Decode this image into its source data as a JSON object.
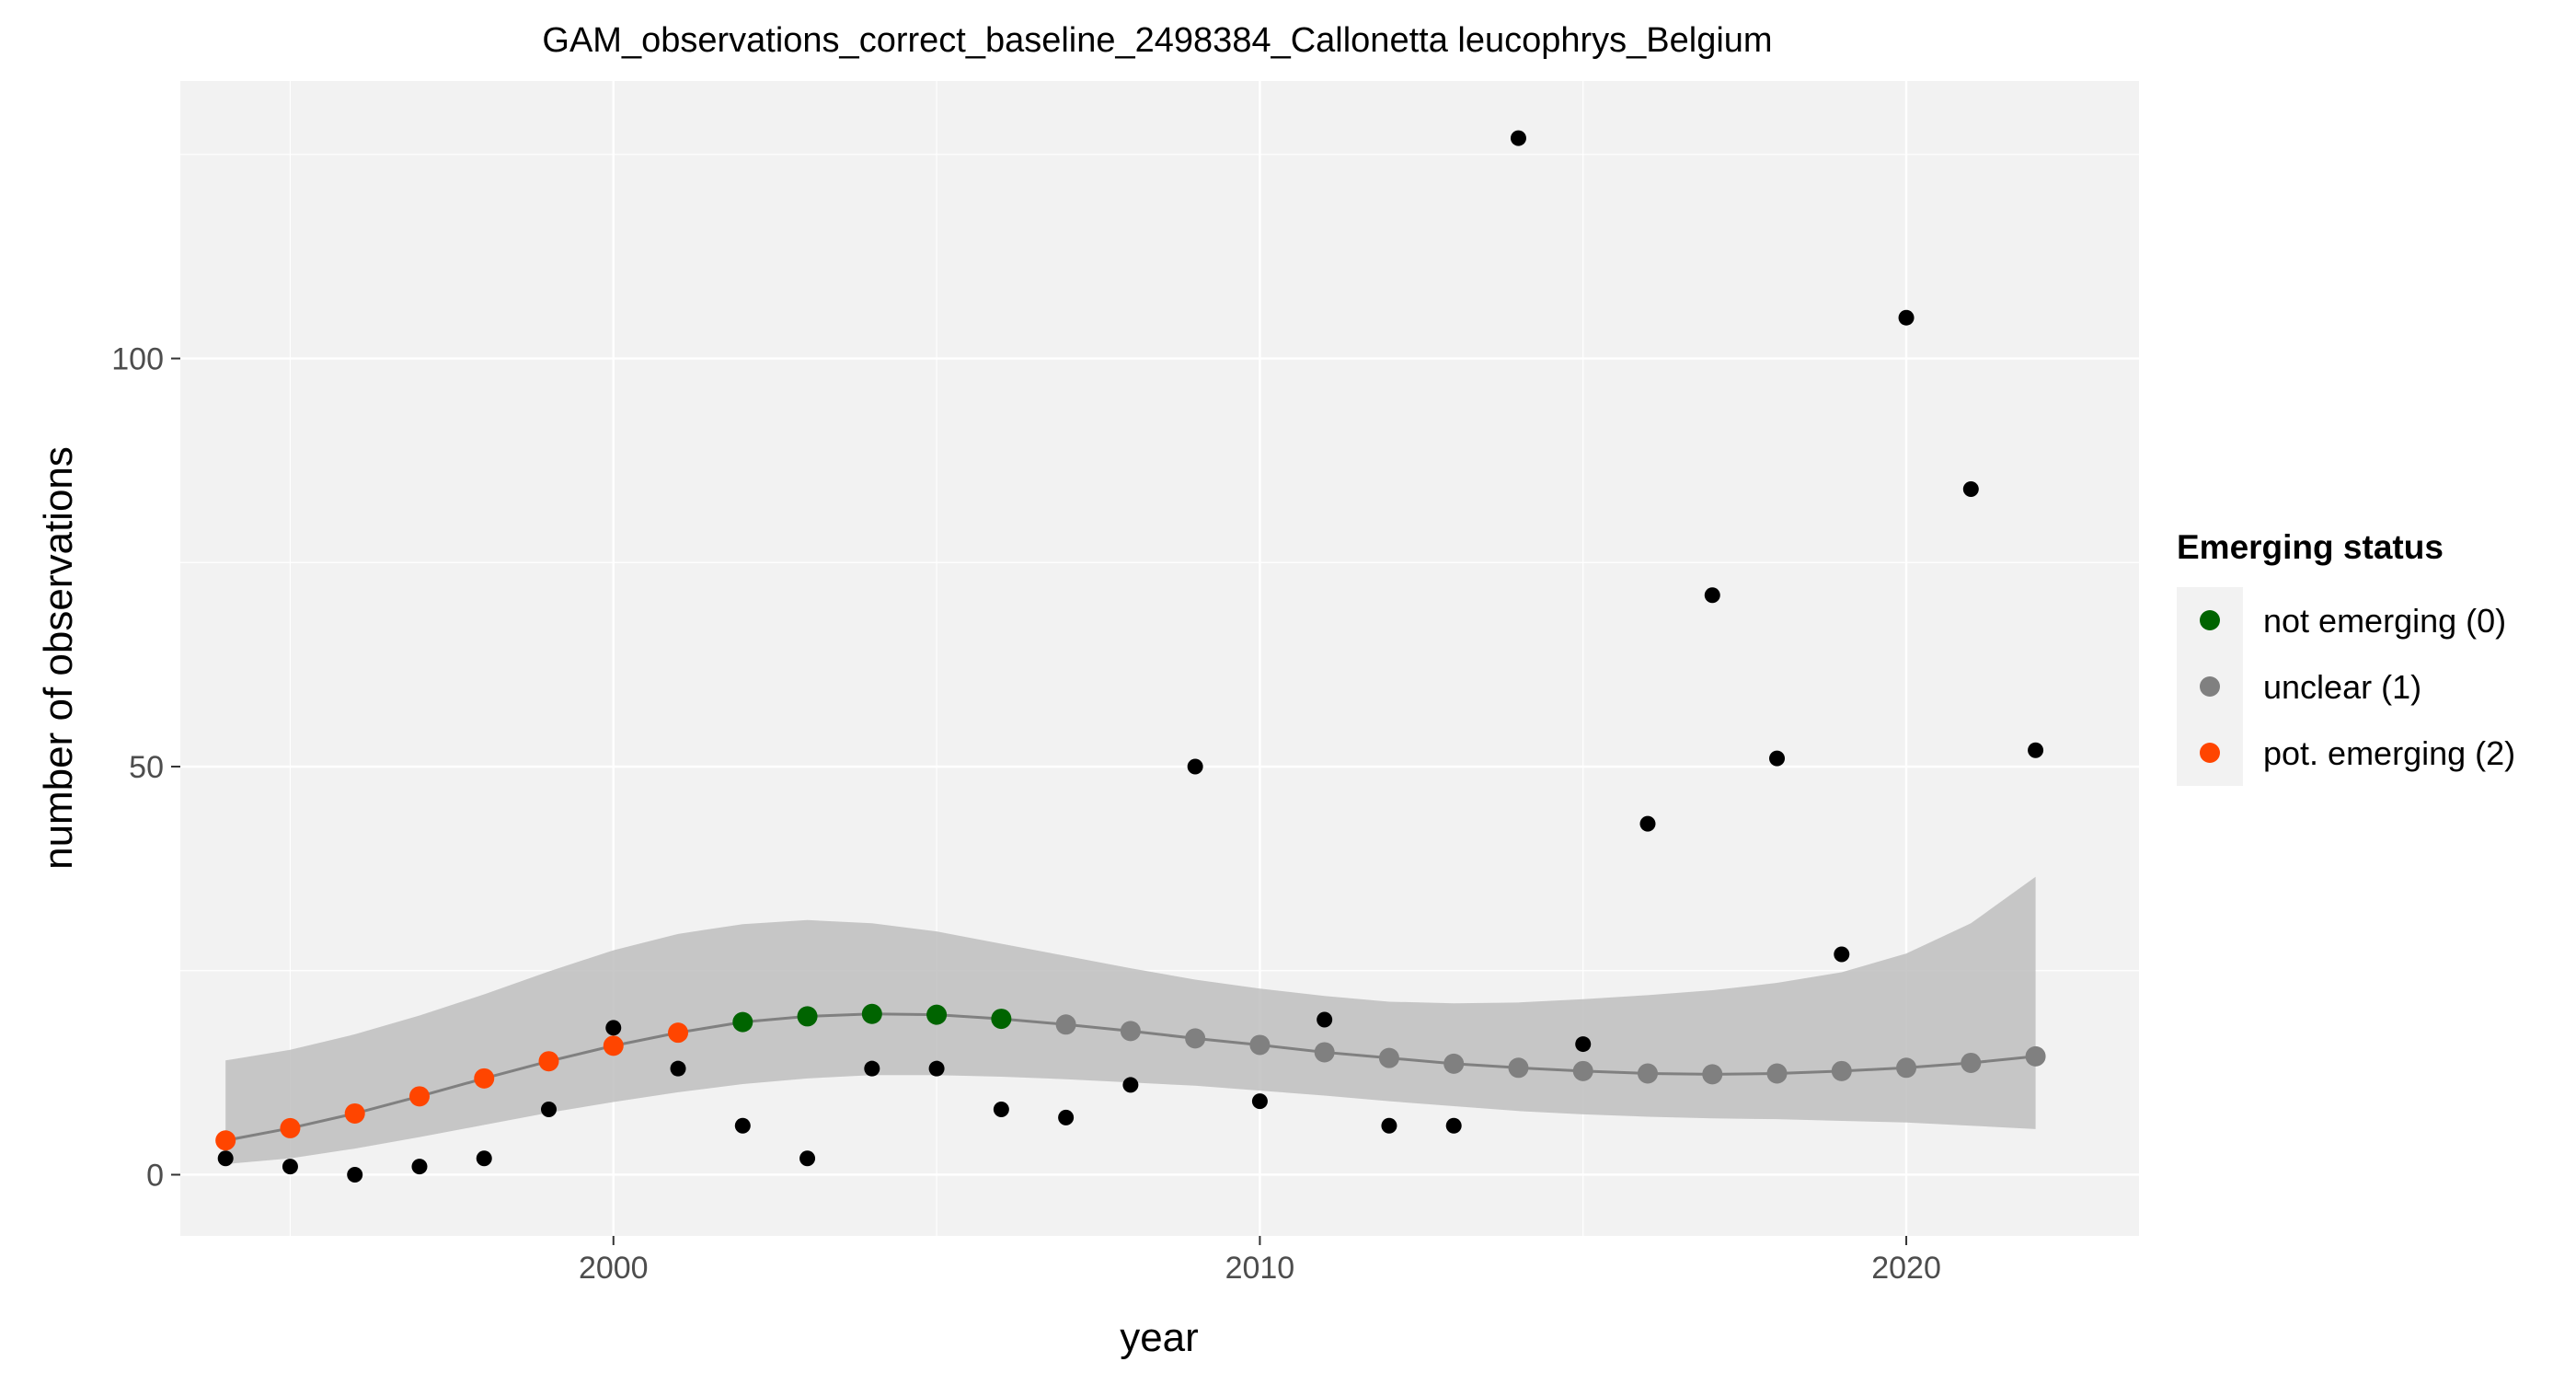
{
  "chart_data": {
    "type": "scatter",
    "title": "GAM_observations_correct_baseline_2498384_Callonetta leucophrys_Belgium",
    "xlabel": "year",
    "ylabel": "number of observations",
    "xlim": [
      1993.3,
      2023.6
    ],
    "ylim": [
      -7.5,
      134
    ],
    "x_ticks": [
      2000,
      2010,
      2020
    ],
    "x_tick_labels": [
      "2000",
      "2010",
      "2020"
    ],
    "y_ticks": [
      0,
      50,
      100
    ],
    "y_tick_labels": [
      "0",
      "50",
      "100"
    ],
    "grid": true,
    "legend_position": "right",
    "legend": {
      "title": "Emerging status",
      "entries": [
        {
          "label": "not emerging (0)",
          "color": "#006400"
        },
        {
          "label": "unclear (1)",
          "color": "#808080"
        },
        {
          "label": "pot. emerging (2)",
          "color": "#FF4500"
        }
      ]
    },
    "observations": {
      "color": "#000000",
      "x": [
        1994,
        1995,
        1996,
        1997,
        1998,
        1999,
        2000,
        2001,
        2002,
        2003,
        2004,
        2005,
        2006,
        2007,
        2008,
        2009,
        2010,
        2011,
        2012,
        2013,
        2014,
        2015,
        2016,
        2017,
        2018,
        2019,
        2020,
        2021,
        2022
      ],
      "y": [
        2,
        1,
        0,
        1,
        2,
        8,
        18,
        13,
        6,
        2,
        13,
        13,
        8,
        7,
        11,
        50,
        9,
        19,
        6,
        6,
        127,
        16,
        43,
        71,
        51,
        27,
        105,
        84,
        52
      ]
    },
    "gam_fit": {
      "x": [
        1994,
        1995,
        1996,
        1997,
        1998,
        1999,
        2000,
        2001,
        2002,
        2003,
        2004,
        2005,
        2006,
        2007,
        2008,
        2009,
        2010,
        2011,
        2012,
        2013,
        2014,
        2015,
        2016,
        2017,
        2018,
        2019,
        2020,
        2021,
        2022
      ],
      "y": [
        4.2,
        5.7,
        7.5,
        9.6,
        11.8,
        13.9,
        15.8,
        17.4,
        18.7,
        19.4,
        19.7,
        19.6,
        19.1,
        18.4,
        17.6,
        16.7,
        15.9,
        15.0,
        14.3,
        13.6,
        13.1,
        12.7,
        12.4,
        12.3,
        12.4,
        12.7,
        13.1,
        13.7,
        14.5
      ],
      "lower": [
        1.3,
        2.0,
        3.2,
        4.6,
        6.1,
        7.6,
        8.9,
        10.1,
        11.1,
        11.8,
        12.2,
        12.2,
        12.0,
        11.7,
        11.3,
        10.9,
        10.3,
        9.7,
        9.0,
        8.4,
        7.8,
        7.4,
        7.1,
        6.9,
        6.8,
        6.6,
        6.4,
        6.0,
        5.6
      ],
      "upper": [
        14.0,
        15.3,
        17.2,
        19.5,
        22.1,
        24.9,
        27.5,
        29.5,
        30.7,
        31.2,
        30.8,
        29.8,
        28.3,
        26.8,
        25.3,
        23.9,
        22.8,
        21.9,
        21.2,
        21.0,
        21.1,
        21.5,
        22.0,
        22.6,
        23.5,
        24.8,
        27.1,
        30.8,
        36.5
      ],
      "status": [
        2,
        2,
        2,
        2,
        2,
        2,
        2,
        2,
        0,
        0,
        0,
        0,
        0,
        1,
        1,
        1,
        1,
        1,
        1,
        1,
        1,
        1,
        1,
        1,
        1,
        1,
        1,
        1,
        1
      ],
      "line_color": "#808080",
      "ribbon_color": "#BEBEBE"
    }
  }
}
